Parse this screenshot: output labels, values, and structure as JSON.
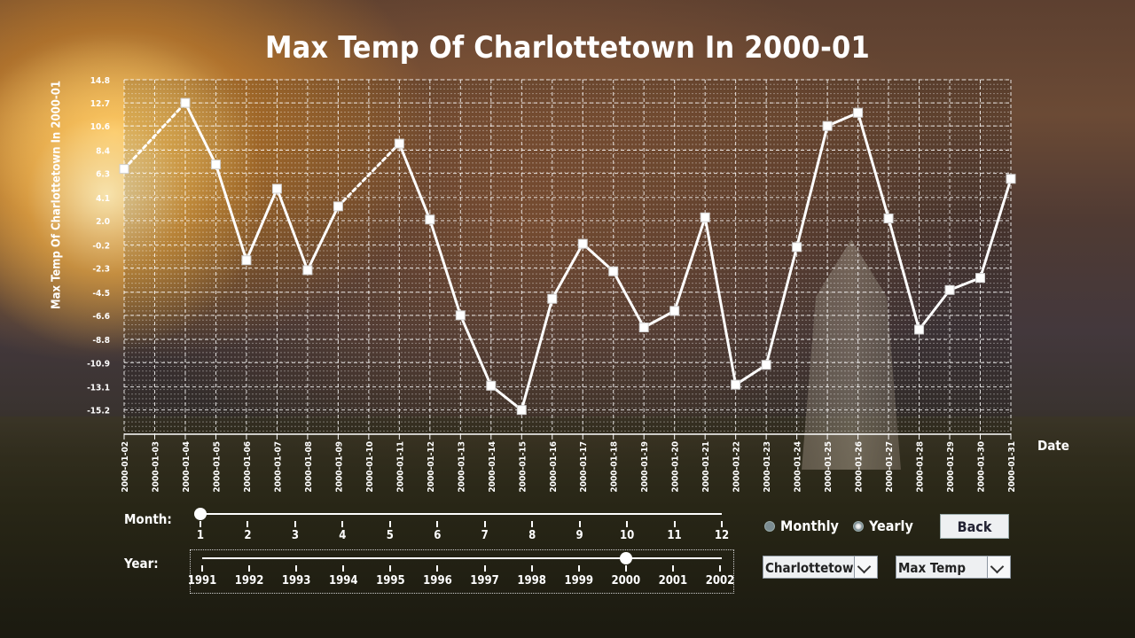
{
  "chart_data": {
    "type": "line",
    "title": "Max Temp Of Charlottetown In 2000-01",
    "ylabel": "Max Temp Of Charlottetown In 2000-01",
    "xlabel": "Date",
    "ylim": [
      -17.4,
      14.8
    ],
    "y_ticks": [
      "14.8",
      "12.7",
      "10.6",
      "8.4",
      "6.3",
      "4.1",
      "2.0",
      "-0.2",
      "-2.3",
      "-4.5",
      "-6.6",
      "-8.8",
      "-10.9",
      "-13.1",
      "-15.2"
    ],
    "categories": [
      "2000-01-02",
      "2000-01-03",
      "2000-01-04",
      "2000-01-05",
      "2000-01-06",
      "2000-01-07",
      "2000-01-08",
      "2000-01-09",
      "2000-01-10",
      "2000-01-11",
      "2000-01-12",
      "2000-01-13",
      "2000-01-14",
      "2000-01-15",
      "2000-01-16",
      "2000-01-17",
      "2000-01-18",
      "2000-01-19",
      "2000-01-20",
      "2000-01-21",
      "2000-01-22",
      "2000-01-23",
      "2000-01-24",
      "2000-01-25",
      "2000-01-26",
      "2000-01-27",
      "2000-01-28",
      "2000-01-29",
      "2000-01-30",
      "2000-01-31"
    ],
    "series": [
      {
        "values": [
          6.7,
          null,
          12.7,
          7.1,
          -1.6,
          4.9,
          -2.5,
          3.3,
          null,
          9.0,
          2.1,
          -6.6,
          -13.0,
          -15.2,
          -5.1,
          -0.1,
          -2.6,
          -7.7,
          -6.2,
          2.3,
          -12.9,
          -11.1,
          -0.4,
          10.6,
          11.8,
          2.2,
          -7.9,
          -4.3,
          -3.2,
          5.8
        ]
      }
    ],
    "gaps_dashed": true,
    "grid": true
  },
  "controls": {
    "month_label": "Month:",
    "month_values": [
      "1",
      "2",
      "3",
      "4",
      "5",
      "6",
      "7",
      "8",
      "9",
      "10",
      "11",
      "12"
    ],
    "month_selected": 1,
    "year_label": "Year:",
    "year_values": [
      "1991",
      "1992",
      "1993",
      "1994",
      "1995",
      "1996",
      "1997",
      "1998",
      "1999",
      "2000",
      "2001",
      "2002"
    ],
    "year_selected": 2000,
    "radio_monthly": "Monthly",
    "radio_yearly": "Yearly",
    "radio_selected": "Yearly",
    "back_label": "Back",
    "city_select": "Charlottetown",
    "metric_select": "Max Temp"
  },
  "colors": {
    "line": "#ffffff",
    "grid": "#ffffff"
  }
}
